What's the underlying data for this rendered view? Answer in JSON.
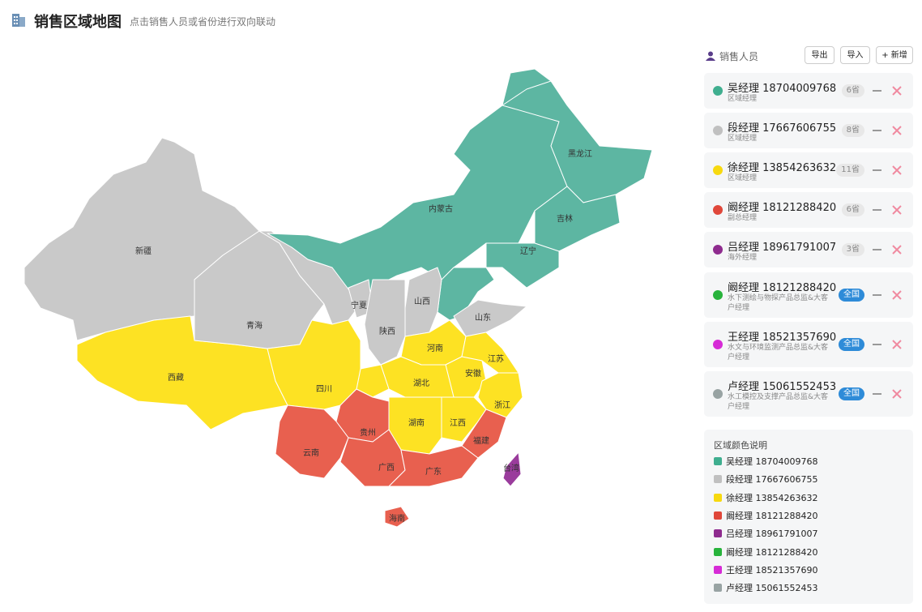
{
  "header": {
    "title": "销售区域地图",
    "subtitle": "点击销售人员或省份进行双向联动"
  },
  "sidebar": {
    "heading": "销售人员",
    "buttons": [
      "导出",
      "导入",
      "+ 新增"
    ],
    "people": [
      {
        "name": "吴经理 18704009768",
        "role": "区域经理",
        "badge": "6省",
        "color": "#3fae8f"
      },
      {
        "name": "段经理 17667606755",
        "role": "区域经理",
        "badge": "8省",
        "color": "#c0c0c0"
      },
      {
        "name": "徐经理 13854263632",
        "role": "区域经理",
        "badge": "11省",
        "color": "#f7d90f"
      },
      {
        "name": "阚经理 18121288420",
        "role": "副总经理",
        "badge": "6省",
        "color": "#e0473a"
      },
      {
        "name": "吕经理 18961791007",
        "role": "海外经理",
        "badge": "3省",
        "color": "#8e2b8e"
      },
      {
        "name": "阚经理 18121288420",
        "role": "水下测绘与物探产品总监&大客户经理",
        "badge": "全国",
        "color": "#28b33c"
      },
      {
        "name": "王经理 18521357690",
        "role": "水文与环境监测产品总监&大客户经理",
        "badge": "全国",
        "color": "#d62bd6"
      },
      {
        "name": "卢经理 15061552453",
        "role": "水工模控及支撑产品总监&大客户经理",
        "badge": "全国",
        "color": "#98a3a3"
      }
    ]
  },
  "legend": {
    "title": "区域颜色说明"
  },
  "map": {
    "provinces": [
      {
        "name": "新疆",
        "color": "#c9c9c9"
      },
      {
        "name": "西藏",
        "color": "#fde223"
      },
      {
        "name": "青海",
        "color": "#c9c9c9"
      },
      {
        "name": null,
        "color": "#c9c9c9"
      },
      {
        "name": "内蒙古",
        "color": "#5db6a2"
      },
      {
        "name": "黑龙江",
        "color": "#5db6a2"
      },
      {
        "name": "吉林",
        "color": "#5db6a2"
      },
      {
        "name": "辽宁",
        "color": "#5db6a2"
      },
      {
        "name": null,
        "color": "#5db6a2"
      },
      {
        "name": "宁夏",
        "color": "#c9c9c9"
      },
      {
        "name": "山西",
        "color": "#c9c9c9"
      },
      {
        "name": "陕西",
        "color": "#c9c9c9"
      },
      {
        "name": "山东",
        "color": "#c9c9c9"
      },
      {
        "name": "河南",
        "color": "#fde223"
      },
      {
        "name": "江苏",
        "color": "#fde223"
      },
      {
        "name": "安徽",
        "color": "#fde223"
      },
      {
        "name": "湖北",
        "color": "#fde223"
      },
      {
        "name": null,
        "color": "#fde223"
      },
      {
        "name": "四川",
        "color": "#fde223"
      },
      {
        "name": "浙江",
        "color": "#fde223"
      },
      {
        "name": "江西",
        "color": "#fde223"
      },
      {
        "name": "湖南",
        "color": "#fde223"
      },
      {
        "name": "福建",
        "color": "#e8604f"
      },
      {
        "name": "贵州",
        "color": "#e8604f"
      },
      {
        "name": "云南",
        "color": "#e8604f"
      },
      {
        "name": "广西",
        "color": "#e8604f"
      },
      {
        "name": "广东",
        "color": "#e8604f"
      },
      {
        "name": "海南",
        "color": "#e8604f"
      },
      {
        "name": "台湾",
        "color": "#9a3c9c"
      }
    ]
  }
}
